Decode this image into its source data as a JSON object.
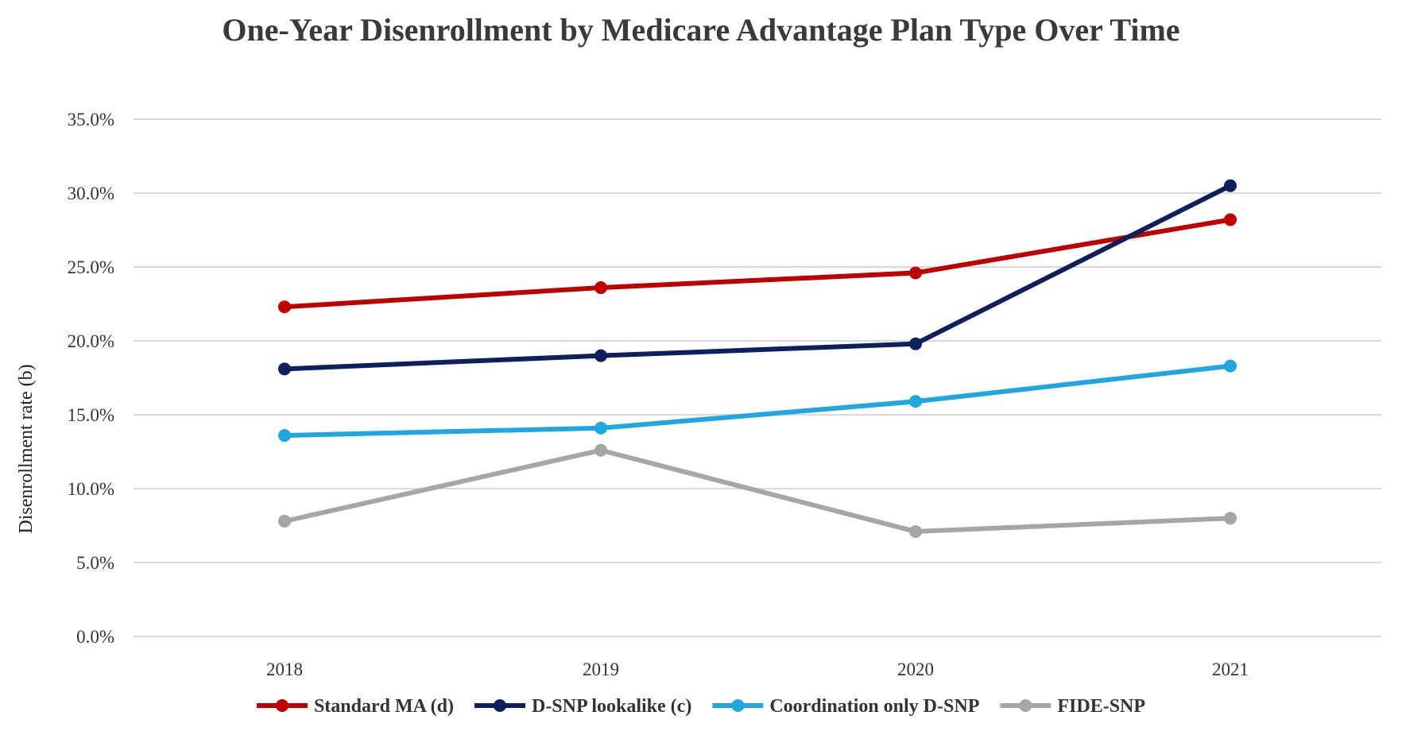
{
  "chart_data": {
    "type": "line",
    "title": "One-Year Disenrollment by Medicare Advantage Plan Type Over Time",
    "xlabel": "",
    "ylabel": "Disenrollment rate (b)",
    "categories": [
      "2018",
      "2019",
      "2020",
      "2021"
    ],
    "ylim": [
      0,
      35
    ],
    "yticks": [
      0,
      5,
      10,
      15,
      20,
      25,
      30,
      35
    ],
    "ytick_labels": [
      "0.0%",
      "5.0%",
      "10.0%",
      "15.0%",
      "20.0%",
      "25.0%",
      "30.0%",
      "35.0%"
    ],
    "grid": "horizontal",
    "legend_position": "bottom",
    "series": [
      {
        "name": "Standard MA (d)",
        "color": "#c00000",
        "values": [
          22.3,
          23.6,
          24.6,
          28.2
        ]
      },
      {
        "name": "D-SNP lookalike (c)",
        "color": "#0d1f5c",
        "values": [
          18.1,
          19.0,
          19.8,
          30.5
        ]
      },
      {
        "name": "Coordination only D-SNP",
        "color": "#1ea7e1",
        "values": [
          13.6,
          14.1,
          15.9,
          18.3
        ]
      },
      {
        "name": "FIDE-SNP",
        "color": "#a6a6a6",
        "values": [
          7.8,
          12.6,
          7.1,
          8.0
        ]
      }
    ]
  }
}
